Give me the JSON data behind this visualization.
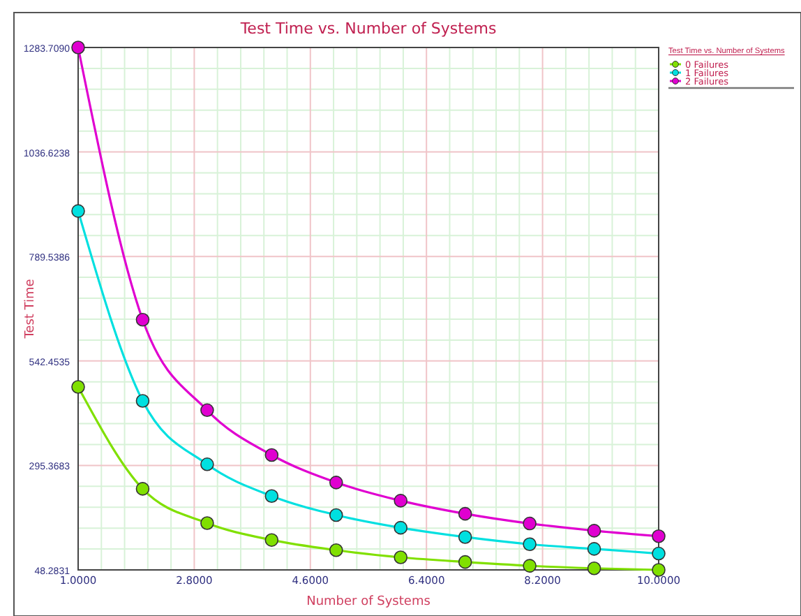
{
  "chart_data": {
    "type": "line",
    "title": "Test Time vs. Number of Systems",
    "xlabel": "Number of Systems",
    "ylabel": "Test Time",
    "legend_title": "Test Time vs. Number of Systems",
    "x": [
      1,
      2,
      3,
      4,
      5,
      6,
      7,
      8,
      9,
      10
    ],
    "series": [
      {
        "name": "0 Failures",
        "color": "#80e000",
        "values": [
          481,
          240,
          159,
          119,
          95,
          78,
          67,
          58,
          52,
          48.3
        ]
      },
      {
        "name": "1 Failures",
        "color": "#00e0e0",
        "values": [
          897,
          448,
          298,
          223,
          178,
          148,
          126,
          109,
          98,
          87
        ]
      },
      {
        "name": "2 Failures",
        "color": "#e000d0",
        "values": [
          1283.7,
          640,
          426,
          320,
          255,
          212,
          181,
          158,
          141,
          128
        ]
      }
    ],
    "xlim": [
      1,
      10
    ],
    "ylim": [
      48.2831,
      1283.709
    ],
    "xticks": [
      {
        "value": 1,
        "label": "1.0000"
      },
      {
        "value": 2.8,
        "label": "2.8000"
      },
      {
        "value": 4.6,
        "label": "4.6000"
      },
      {
        "value": 6.4,
        "label": "6.4000"
      },
      {
        "value": 8.2,
        "label": "8.2000"
      },
      {
        "value": 10,
        "label": "10.0000"
      }
    ],
    "yticks": [
      {
        "value": 48.2831,
        "label": "48.2831"
      },
      {
        "value": 295.3683,
        "label": "295.3683"
      },
      {
        "value": 542.4535,
        "label": "542.4535"
      },
      {
        "value": 789.5386,
        "label": "789.5386"
      },
      {
        "value": 1036.6238,
        "label": "1036.6238"
      },
      {
        "value": 1283.709,
        "label": "1283.7090"
      }
    ],
    "grid": true,
    "legend": "right",
    "marker": "circle",
    "line_style": "solid"
  }
}
